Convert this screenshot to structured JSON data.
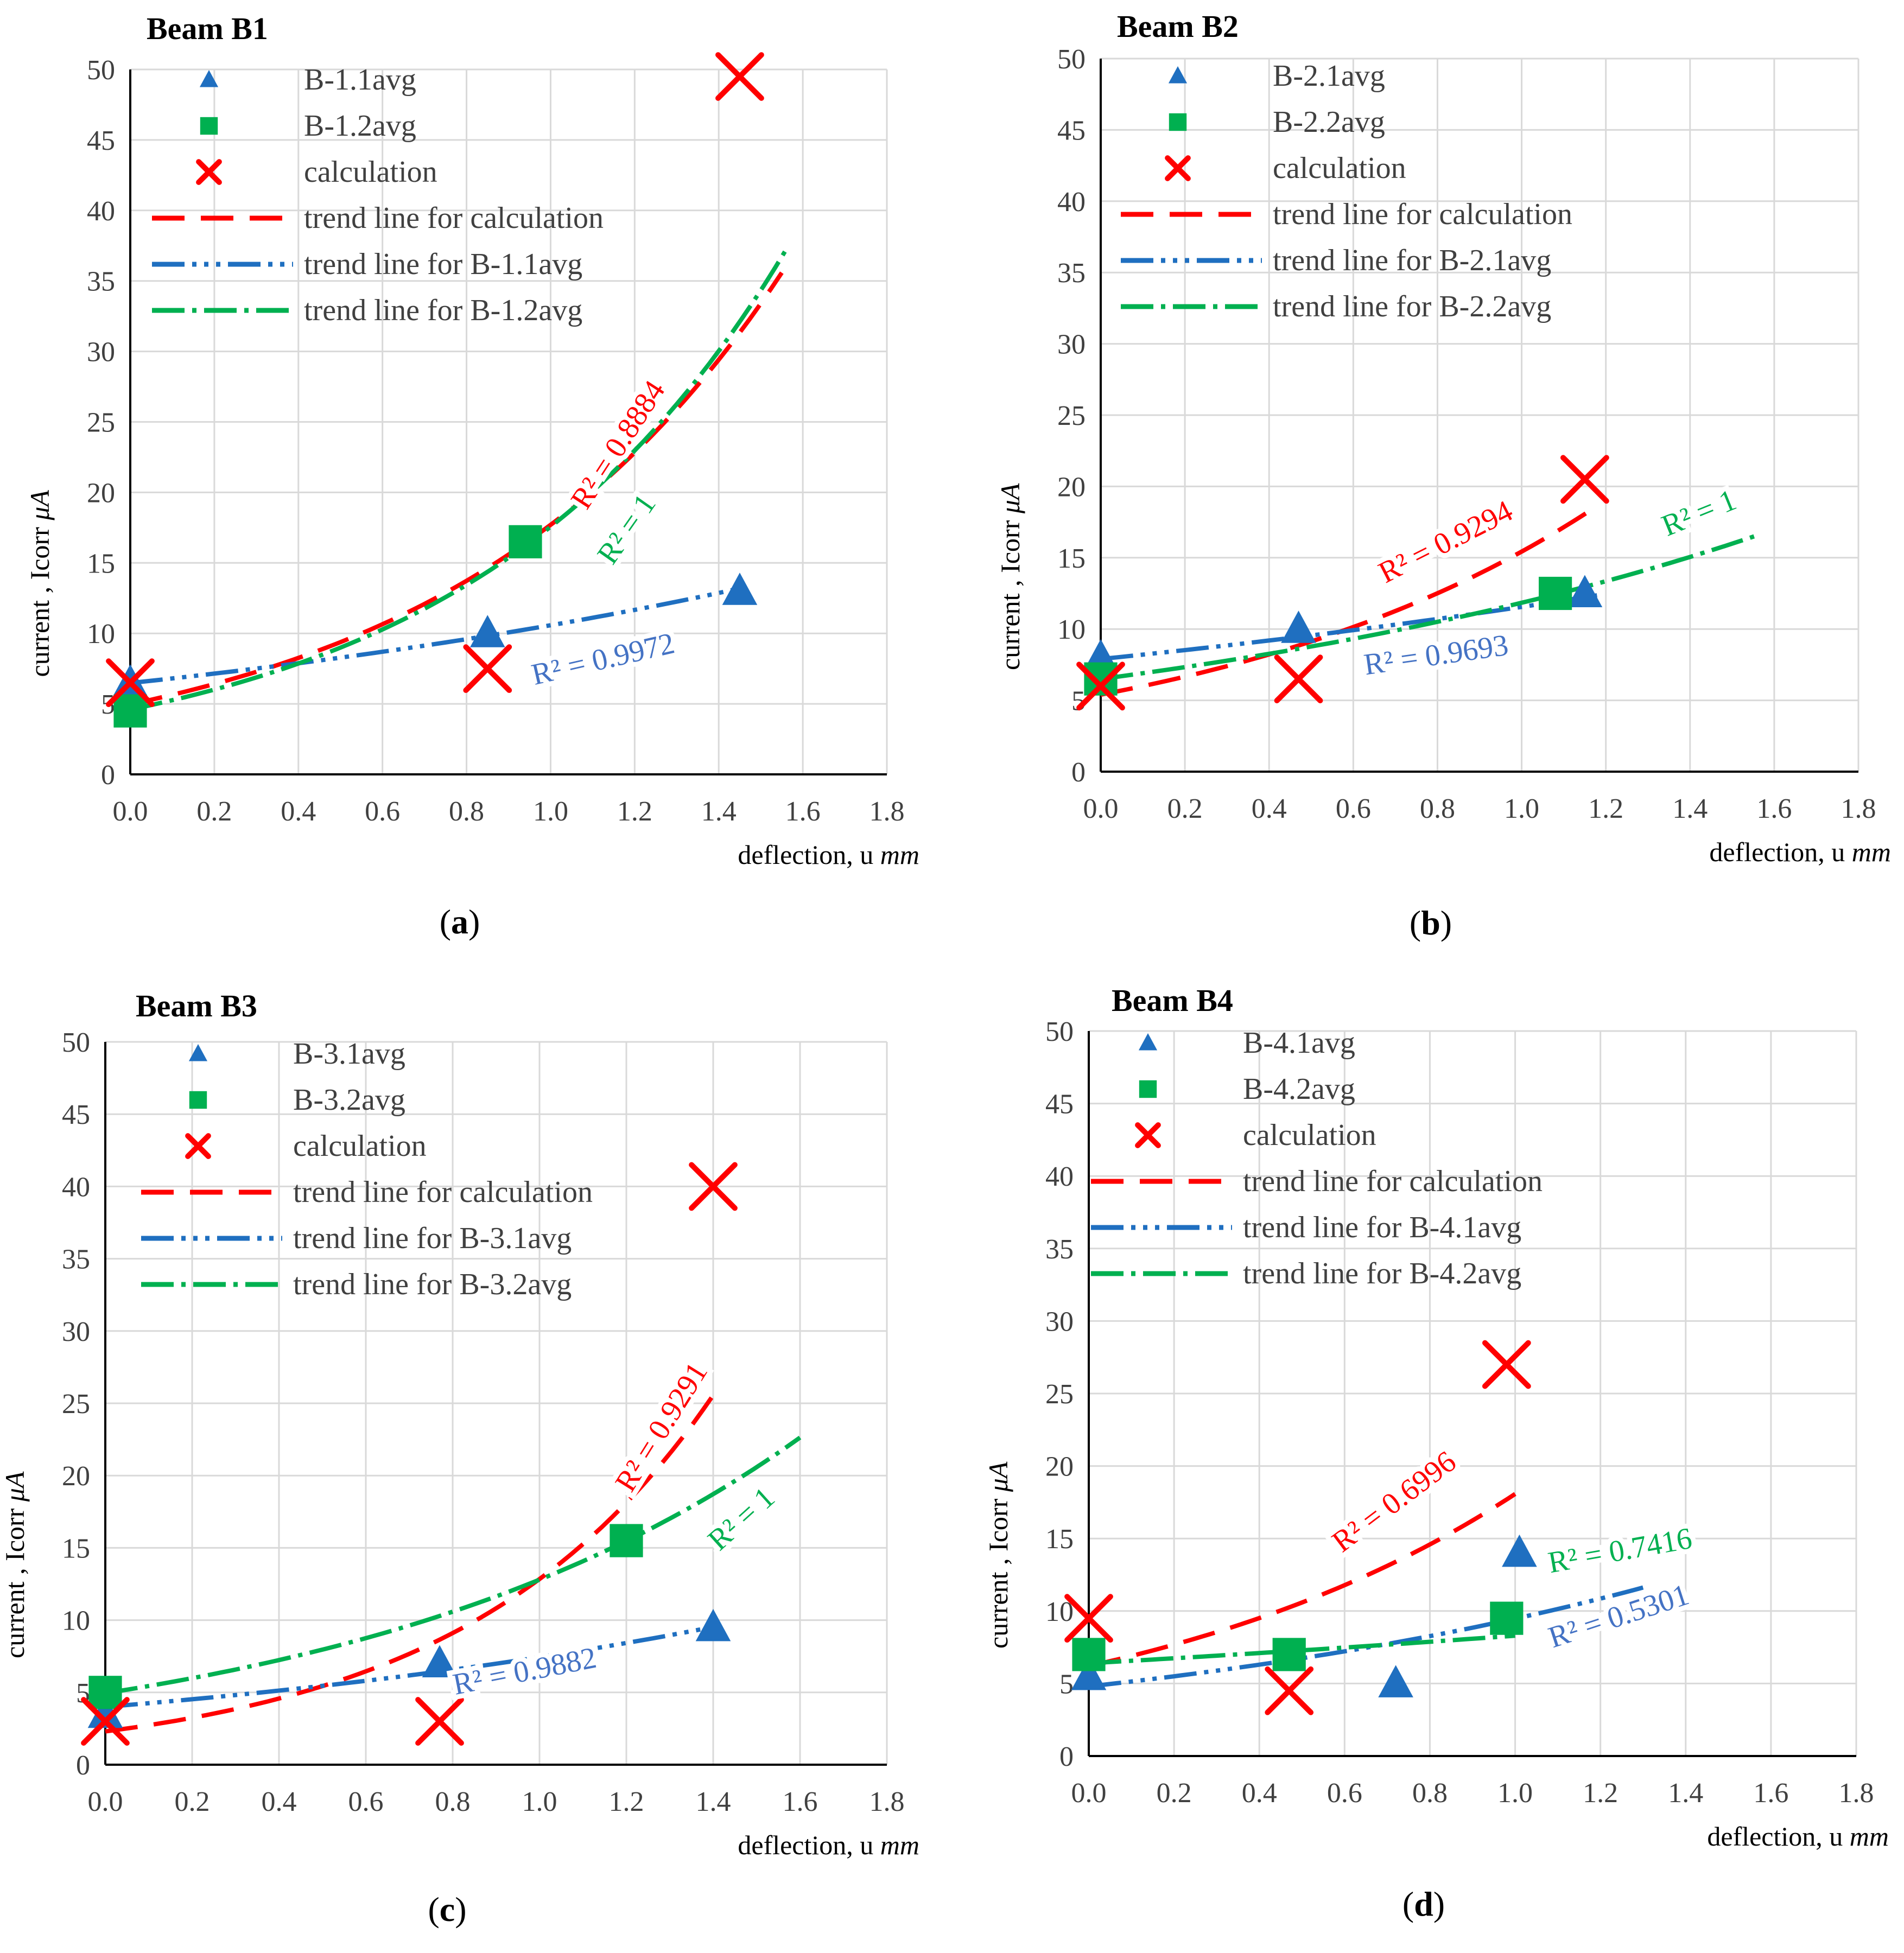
{
  "figure": {
    "colors": {
      "calc": "#ff0000",
      "s1": "#1f6fc0",
      "s2": "#00b050",
      "r2_s1": "#4472c4",
      "r2_s2": "#00b050",
      "r2_calc": "#ff0000"
    }
  },
  "chart_data": [
    {
      "type": "scatter",
      "title": "Beam B1",
      "caption_letter": "a",
      "xlabel": "deflection, u",
      "xlabel_unit": "mm",
      "ylabel": "current , Icorr",
      "ylabel_unit": "μA",
      "xlim": [
        0,
        1.8
      ],
      "ylim": [
        0,
        50
      ],
      "xticks": [
        "0.0",
        "0.2",
        "0.4",
        "0.6",
        "0.8",
        "1.0",
        "1.2",
        "1.4",
        "1.6",
        "1.8"
      ],
      "yticks": [
        "0",
        "5",
        "10",
        "15",
        "20",
        "25",
        "30",
        "35",
        "40",
        "45",
        "50"
      ],
      "legend": [
        "B-1.1avg",
        "B-1.2avg",
        "calculation",
        "trend line for calculation",
        "trend line for B-1.1avg",
        "trend line for B-1.2avg"
      ],
      "series": [
        {
          "name": "B-1.1avg",
          "marker": "triangle",
          "points": [
            [
              0.0,
              6.5
            ],
            [
              0.85,
              10.0
            ],
            [
              1.45,
              13.0
            ]
          ]
        },
        {
          "name": "B-1.2avg",
          "marker": "square",
          "points": [
            [
              0.0,
              4.5
            ],
            [
              0.94,
              16.5
            ]
          ]
        },
        {
          "name": "calculation",
          "marker": "x",
          "points": [
            [
              0.0,
              6.5
            ],
            [
              0.85,
              7.5
            ],
            [
              1.45,
              49.5
            ]
          ]
        }
      ],
      "trendlines": [
        {
          "name": "trend line for calculation",
          "kind": "exp",
          "a": 4.97,
          "b": 1.27,
          "x": [
            0.0,
            1.55
          ]
        },
        {
          "name": "trend line for B-1.1avg",
          "kind": "exp",
          "a": 6.48,
          "b": 0.49,
          "x": [
            0.0,
            1.45
          ]
        },
        {
          "name": "trend line for B-1.2avg",
          "kind": "exp",
          "a": 4.6,
          "b": 1.34,
          "x": [
            0.0,
            1.56
          ]
        }
      ],
      "r2_labels": [
        {
          "text": "R² = 0.8884",
          "series": "calc",
          "at": [
            1.18,
            23.0
          ],
          "angle": -57
        },
        {
          "text": "R² = 1",
          "series": "s2",
          "at": [
            1.2,
            17.0
          ],
          "angle": -55
        },
        {
          "text": "R² = 0.9972",
          "series": "s1",
          "at": [
            1.13,
            7.5
          ],
          "angle": -13
        }
      ]
    },
    {
      "type": "scatter",
      "title": "Beam B2",
      "caption_letter": "b",
      "xlabel": "deflection, u",
      "xlabel_unit": "mm",
      "ylabel": "current , Icorr",
      "ylabel_unit": "μA",
      "xlim": [
        0,
        1.8
      ],
      "ylim": [
        0,
        50
      ],
      "xticks": [
        "0.0",
        "0.2",
        "0.4",
        "0.6",
        "0.8",
        "1.0",
        "1.2",
        "1.4",
        "1.6",
        "1.8"
      ],
      "yticks": [
        "0",
        "5",
        "10",
        "15",
        "20",
        "25",
        "30",
        "35",
        "40",
        "45",
        "50"
      ],
      "legend": [
        "B-2.1avg",
        "B-2.2avg",
        "calculation",
        "trend line for calculation",
        "trend line for B-2.1avg",
        "trend line for B-2.2avg"
      ],
      "series": [
        {
          "name": "B-2.1avg",
          "marker": "triangle",
          "points": [
            [
              0.0,
              8.0
            ],
            [
              0.47,
              10.0
            ],
            [
              1.15,
              12.5
            ]
          ]
        },
        {
          "name": "B-2.2avg",
          "marker": "square",
          "points": [
            [
              0.0,
              6.5
            ],
            [
              1.08,
              12.5
            ]
          ]
        },
        {
          "name": "calculation",
          "marker": "x",
          "points": [
            [
              0.0,
              6.0
            ],
            [
              0.47,
              6.5
            ],
            [
              1.15,
              20.5
            ]
          ]
        }
      ],
      "trendlines": [
        {
          "name": "trend line for calculation",
          "kind": "exp",
          "a": 5.4,
          "b": 1.05,
          "x": [
            0.0,
            1.18
          ]
        },
        {
          "name": "trend line for B-2.1avg",
          "kind": "exp",
          "a": 7.9,
          "b": 0.38,
          "x": [
            0.0,
            1.18
          ]
        },
        {
          "name": "trend line for B-2.2avg",
          "kind": "exp",
          "a": 6.5,
          "b": 0.6,
          "x": [
            0.0,
            1.56
          ]
        }
      ],
      "r2_labels": [
        {
          "text": "R² = 0.9294",
          "series": "calc",
          "at": [
            0.83,
            15.5
          ],
          "angle": -27
        },
        {
          "text": "R² = 1",
          "series": "s2",
          "at": [
            1.43,
            17.5
          ],
          "angle": -22
        },
        {
          "text": "R² = 0.9693",
          "series": "s1",
          "at": [
            0.8,
            7.5
          ],
          "angle": -8
        }
      ]
    },
    {
      "type": "scatter",
      "title": "Beam B3",
      "caption_letter": "c",
      "xlabel": "deflection, u",
      "xlabel_unit": "mm",
      "ylabel": "current , Icorr",
      "ylabel_unit": "μA",
      "xlim": [
        0,
        1.8
      ],
      "ylim": [
        0,
        50
      ],
      "xticks": [
        "0.0",
        "0.2",
        "0.4",
        "0.6",
        "0.8",
        "1.0",
        "1.2",
        "1.4",
        "1.6",
        "1.8"
      ],
      "yticks": [
        "0",
        "5",
        "10",
        "15",
        "20",
        "25",
        "30",
        "35",
        "40",
        "45",
        "50"
      ],
      "legend": [
        "B-3.1avg",
        "B-3.2avg",
        "calculation",
        "trend line for calculation",
        "trend line for B-3.1avg",
        "trend line for B-3.2avg"
      ],
      "series": [
        {
          "name": "B-3.1avg",
          "marker": "triangle",
          "points": [
            [
              0.0,
              3.5
            ],
            [
              0.77,
              7.0
            ],
            [
              1.4,
              9.5
            ]
          ]
        },
        {
          "name": "B-3.2avg",
          "marker": "square",
          "points": [
            [
              0.0,
              5.0
            ],
            [
              1.2,
              15.5
            ]
          ]
        },
        {
          "name": "calculation",
          "marker": "x",
          "points": [
            [
              0.0,
              3.0
            ],
            [
              0.77,
              3.0
            ],
            [
              1.4,
              40.0
            ]
          ]
        }
      ],
      "trendlines": [
        {
          "name": "trend line for calculation",
          "kind": "exp",
          "a": 2.3,
          "b": 1.72,
          "x": [
            0.0,
            1.4
          ]
        },
        {
          "name": "trend line for B-3.1avg",
          "kind": "exp",
          "a": 4.0,
          "b": 0.62,
          "x": [
            0.0,
            1.4
          ]
        },
        {
          "name": "trend line for B-3.2avg",
          "kind": "exp",
          "a": 4.95,
          "b": 0.95,
          "x": [
            0.0,
            1.6
          ]
        }
      ],
      "r2_labels": [
        {
          "text": "R² = 0.9291",
          "series": "calc",
          "at": [
            1.3,
            23.0
          ],
          "angle": -58
        },
        {
          "text": "R² = 1",
          "series": "s2",
          "at": [
            1.48,
            16.5
          ],
          "angle": -42
        },
        {
          "text": "R² = 0.9882",
          "series": "s1",
          "at": [
            0.97,
            5.8
          ],
          "angle": -11
        }
      ]
    },
    {
      "type": "scatter",
      "title": "Beam B4",
      "caption_letter": "d",
      "xlabel": "deflection, u",
      "xlabel_unit": "mm",
      "ylabel": "current , Icorr",
      "ylabel_unit": "μA",
      "xlim": [
        0,
        1.8
      ],
      "ylim": [
        0,
        50
      ],
      "xticks": [
        "0.0",
        "0.2",
        "0.4",
        "0.6",
        "0.8",
        "1.0",
        "1.2",
        "1.4",
        "1.6",
        "1.8"
      ],
      "yticks": [
        "0",
        "5",
        "10",
        "15",
        "20",
        "25",
        "30",
        "35",
        "40",
        "45",
        "50"
      ],
      "legend": [
        "B-4.1avg",
        "B-4.2avg",
        "calculation",
        "trend line for calculation",
        "trend line for B-4.1avg",
        "trend line for B-4.2avg"
      ],
      "series": [
        {
          "name": "B-4.1avg",
          "marker": "triangle",
          "points": [
            [
              0.0,
              5.5
            ],
            [
              0.72,
              5.0
            ],
            [
              1.01,
              14.0
            ]
          ]
        },
        {
          "name": "B-4.2avg",
          "marker": "square",
          "points": [
            [
              0.0,
              7.0
            ],
            [
              0.47,
              7.0
            ],
            [
              0.98,
              9.5
            ]
          ]
        },
        {
          "name": "calculation",
          "marker": "x",
          "points": [
            [
              0.0,
              9.5
            ],
            [
              0.47,
              4.5
            ],
            [
              0.98,
              27.0
            ]
          ]
        }
      ],
      "trendlines": [
        {
          "name": "trend line for calculation",
          "kind": "exp",
          "a": 6.2,
          "b": 1.07,
          "x": [
            0.0,
            1.0
          ]
        },
        {
          "name": "trend line for B-4.1avg",
          "kind": "exp",
          "a": 4.8,
          "b": 0.68,
          "x": [
            0.0,
            1.3
          ]
        },
        {
          "name": "trend line for B-4.2avg",
          "kind": "exp",
          "a": 6.4,
          "b": 0.26,
          "x": [
            0.0,
            1.0
          ]
        }
      ],
      "r2_labels": [
        {
          "text": "R² = 0.6996",
          "series": "calc",
          "at": [
            0.73,
            17.0
          ],
          "angle": -37
        },
        {
          "text": "R² = 0.7416",
          "series": "s2",
          "at": [
            1.25,
            13.5
          ],
          "angle": -10
        },
        {
          "text": "R² = 0.5301",
          "series": "s1",
          "at": [
            1.25,
            9.0
          ],
          "angle": -18
        }
      ]
    }
  ]
}
